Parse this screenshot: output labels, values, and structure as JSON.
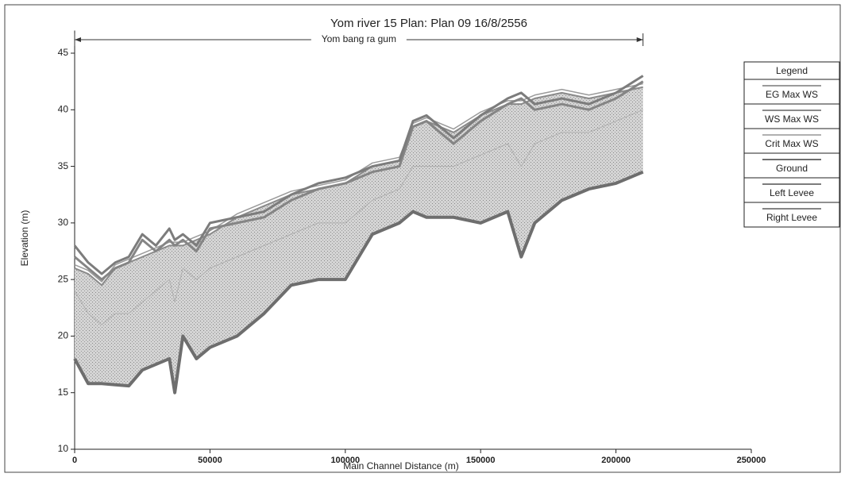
{
  "chart_data": {
    "type": "line",
    "title": "Yom river 15    Plan: Plan 09    16/8/2556",
    "annotation": "Yom bang ra gum",
    "x_label": "Main Channel Distance (m)",
    "y_label": "Elevation (m)",
    "legend_title": "Legend",
    "x": [
      0,
      5000,
      10000,
      15000,
      20000,
      25000,
      30000,
      35000,
      37000,
      40000,
      45000,
      50000,
      60000,
      70000,
      80000,
      90000,
      100000,
      110000,
      120000,
      125000,
      130000,
      140000,
      150000,
      160000,
      165000,
      170000,
      180000,
      190000,
      200000,
      210000
    ],
    "series": [
      {
        "name": "EG Max WS",
        "color": "#9a9a9a",
        "values": [
          26.3,
          25.8,
          24.8,
          26.3,
          26.8,
          27.3,
          27.8,
          28.3,
          28.3,
          28.3,
          28.8,
          29.3,
          30.8,
          31.8,
          32.8,
          33.3,
          33.8,
          35.3,
          35.8,
          38.8,
          39.3,
          38.3,
          39.8,
          40.8,
          40.8,
          41.3,
          41.8,
          41.3,
          41.8,
          42.3
        ]
      },
      {
        "name": "WS Max WS",
        "color": "#8a8a8a",
        "values": [
          26,
          25.5,
          24.5,
          26,
          26.5,
          27,
          27.5,
          28,
          28,
          28,
          28.5,
          29,
          30.5,
          31.5,
          32.5,
          33,
          33.5,
          35,
          35.5,
          38.5,
          39,
          38,
          39.5,
          40.5,
          40.5,
          41,
          41.5,
          41,
          41.5,
          42
        ]
      },
      {
        "name": "Crit Max WS",
        "color": "#b0b0b0",
        "values": [
          24,
          22,
          21,
          22,
          22,
          23,
          24,
          25,
          23,
          26,
          25,
          26,
          27,
          28,
          29,
          30,
          30,
          32,
          33,
          35,
          35,
          35,
          36,
          37,
          35,
          37,
          38,
          38,
          39,
          40
        ]
      },
      {
        "name": "Ground",
        "color": "#6e6e6e",
        "values": [
          18,
          15.8,
          15.8,
          15.7,
          15.6,
          17,
          17.5,
          18,
          15,
          20,
          18,
          19,
          20,
          22,
          24.5,
          25,
          25,
          29,
          30,
          31,
          30.5,
          30.5,
          30,
          31,
          27,
          30,
          32,
          33,
          33.5,
          34.5
        ]
      },
      {
        "name": "Left Levee",
        "color": "#7c7c7c",
        "values": [
          28,
          26.5,
          25.5,
          26.5,
          27,
          29,
          28,
          29.5,
          28.5,
          29,
          28,
          30,
          30.5,
          31,
          32.5,
          33.5,
          34,
          35,
          35.5,
          39,
          39.5,
          37.5,
          39.5,
          41,
          41.5,
          40.5,
          41,
          40.5,
          41.5,
          43
        ]
      },
      {
        "name": "Right Levee",
        "color": "#858585",
        "values": [
          27,
          26,
          25,
          26,
          26.5,
          28.5,
          27.5,
          28.5,
          28,
          28.5,
          27.5,
          29.5,
          30,
          30.5,
          32,
          33,
          33.5,
          34.5,
          35,
          38.5,
          39,
          37,
          39,
          40.5,
          41,
          40,
          40.5,
          40,
          41,
          42.5
        ]
      }
    ],
    "xlim": [
      0,
      250000
    ],
    "xticks": [
      0,
      50000,
      100000,
      150000,
      200000,
      250000
    ],
    "ylim": [
      10,
      47
    ],
    "yticks": [
      10,
      15,
      20,
      25,
      30,
      35,
      40,
      45
    ]
  }
}
